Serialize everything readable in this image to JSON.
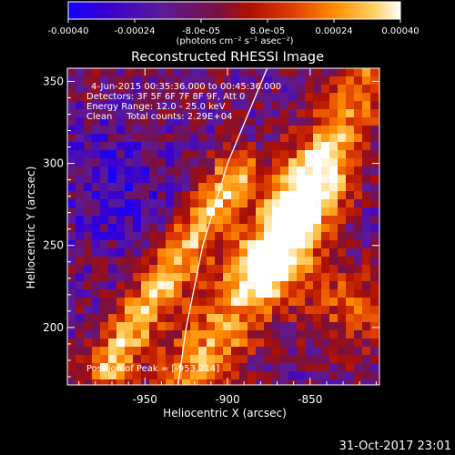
{
  "colorbar": {
    "tick_labels": [
      "-0.00040",
      "-0.00024",
      "-8.0e-05",
      "8.0e-05",
      "0.00024",
      "0.00040"
    ],
    "unit_label": "(photons cm⁻² s⁻¹ asec⁻²)",
    "range": [
      -0.0004,
      0.0004
    ],
    "colors": [
      "#1200ff",
      "#3a00d0",
      "#5b1a9a",
      "#7a1040",
      "#b01000",
      "#e04000",
      "#ff8c00",
      "#ffd060",
      "#ffffff"
    ]
  },
  "chart_data": {
    "type": "heatmap",
    "title": "Reconstructed RHESSI Image",
    "xlabel": "Heliocentric X (arcsec)",
    "ylabel": "Heliocentric Y (arcsec)",
    "xlim": [
      -997,
      -808
    ],
    "ylim": [
      165,
      358
    ],
    "x_ticks": [
      -950,
      -900,
      -850
    ],
    "y_ticks": [
      200,
      250,
      300,
      350
    ],
    "x_tick_labels": [
      "-950",
      "-900",
      "-850"
    ],
    "y_tick_labels": [
      "200",
      "250",
      "300",
      "350"
    ],
    "info_lines": [
      "4-Jun-2015 00:35:36.000 to 00:45:36.000",
      "Detectors: 3F 5F 6F 7F 8F 9F, Att 0",
      "Energy Range: 12.0 - 25.0 keV",
      "Clean     Total counts: 2.29E+04"
    ],
    "peak_label": "Position of Peak = [-953,214]",
    "peak_position": [
      -953,
      214
    ],
    "limb_curve": [
      [
        -930,
        165
      ],
      [
        -925,
        200
      ],
      [
        -915,
        250
      ],
      [
        -900,
        300
      ],
      [
        -876,
        358
      ]
    ],
    "grid": false
  },
  "footer": {
    "date": "31-Oct-2017 23:01"
  }
}
